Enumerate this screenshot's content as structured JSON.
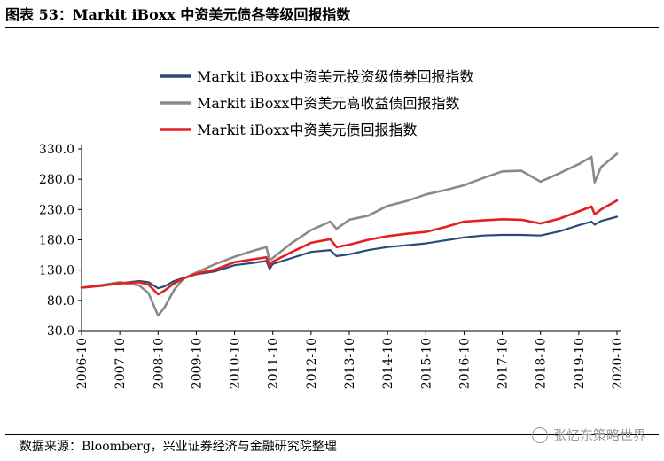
{
  "title": "图表 53：Markit iBoxx 中资美元债各等级回报指数",
  "source": "数据来源：Bloomberg，兴业证券经济与金融研究院整理",
  "watermark": "张忆东策略世界",
  "chart_data": {
    "type": "line",
    "title": "",
    "xlabel": "",
    "ylabel": "",
    "ylim": [
      30,
      330
    ],
    "yticks": [
      "30.0",
      "80.0",
      "130.0",
      "180.0",
      "230.0",
      "280.0",
      "330.0"
    ],
    "xticks": [
      "2006-10",
      "2007-10",
      "2008-10",
      "2009-10",
      "2010-10",
      "2011-10",
      "2012-10",
      "2013-10",
      "2014-10",
      "2015-10",
      "2016-10",
      "2017-10",
      "2018-10",
      "2019-10",
      "2020-10"
    ],
    "grid": false,
    "legend_position": "top",
    "x": [
      "2006-10",
      "2007-04",
      "2007-10",
      "2008-04",
      "2008-07",
      "2008-10",
      "2008-12",
      "2009-03",
      "2009-06",
      "2009-10",
      "2010-04",
      "2010-10",
      "2011-04",
      "2011-08",
      "2011-09",
      "2011-10",
      "2012-04",
      "2012-10",
      "2013-04",
      "2013-06",
      "2013-10",
      "2014-04",
      "2014-10",
      "2015-04",
      "2015-10",
      "2016-04",
      "2016-10",
      "2017-04",
      "2017-10",
      "2018-04",
      "2018-10",
      "2019-04",
      "2019-10",
      "2020-02",
      "2020-03",
      "2020-05",
      "2020-10"
    ],
    "series": [
      {
        "name": "Markit iBoxx中资美元投资级债券回报指数",
        "color": "#2a4a7a",
        "values": [
          101,
          104,
          108,
          112,
          110,
          100,
          103,
          112,
          117,
          123,
          128,
          138,
          142,
          145,
          132,
          140,
          150,
          160,
          163,
          153,
          156,
          163,
          168,
          171,
          174,
          179,
          184,
          187,
          188,
          188,
          187,
          194,
          204,
          210,
          205,
          211,
          218
        ]
      },
      {
        "name": "Markit iBoxx中资美元高收益债回报指数",
        "color": "#8a8a8a",
        "values": [
          101,
          105,
          110,
          105,
          92,
          55,
          68,
          97,
          116,
          126,
          140,
          152,
          162,
          168,
          146,
          150,
          175,
          196,
          210,
          198,
          213,
          220,
          236,
          244,
          255,
          262,
          270,
          282,
          293,
          294,
          276,
          290,
          305,
          317,
          275,
          300,
          322
        ]
      },
      {
        "name": "Markit iBoxx中资美元债回报指数",
        "color": "#e32020",
        "values": [
          101,
          104,
          108,
          110,
          106,
          90,
          96,
          108,
          116,
          124,
          131,
          143,
          148,
          151,
          137,
          144,
          160,
          175,
          181,
          168,
          172,
          180,
          186,
          190,
          193,
          201,
          210,
          212,
          214,
          213,
          207,
          215,
          227,
          235,
          222,
          230,
          245
        ]
      }
    ]
  }
}
